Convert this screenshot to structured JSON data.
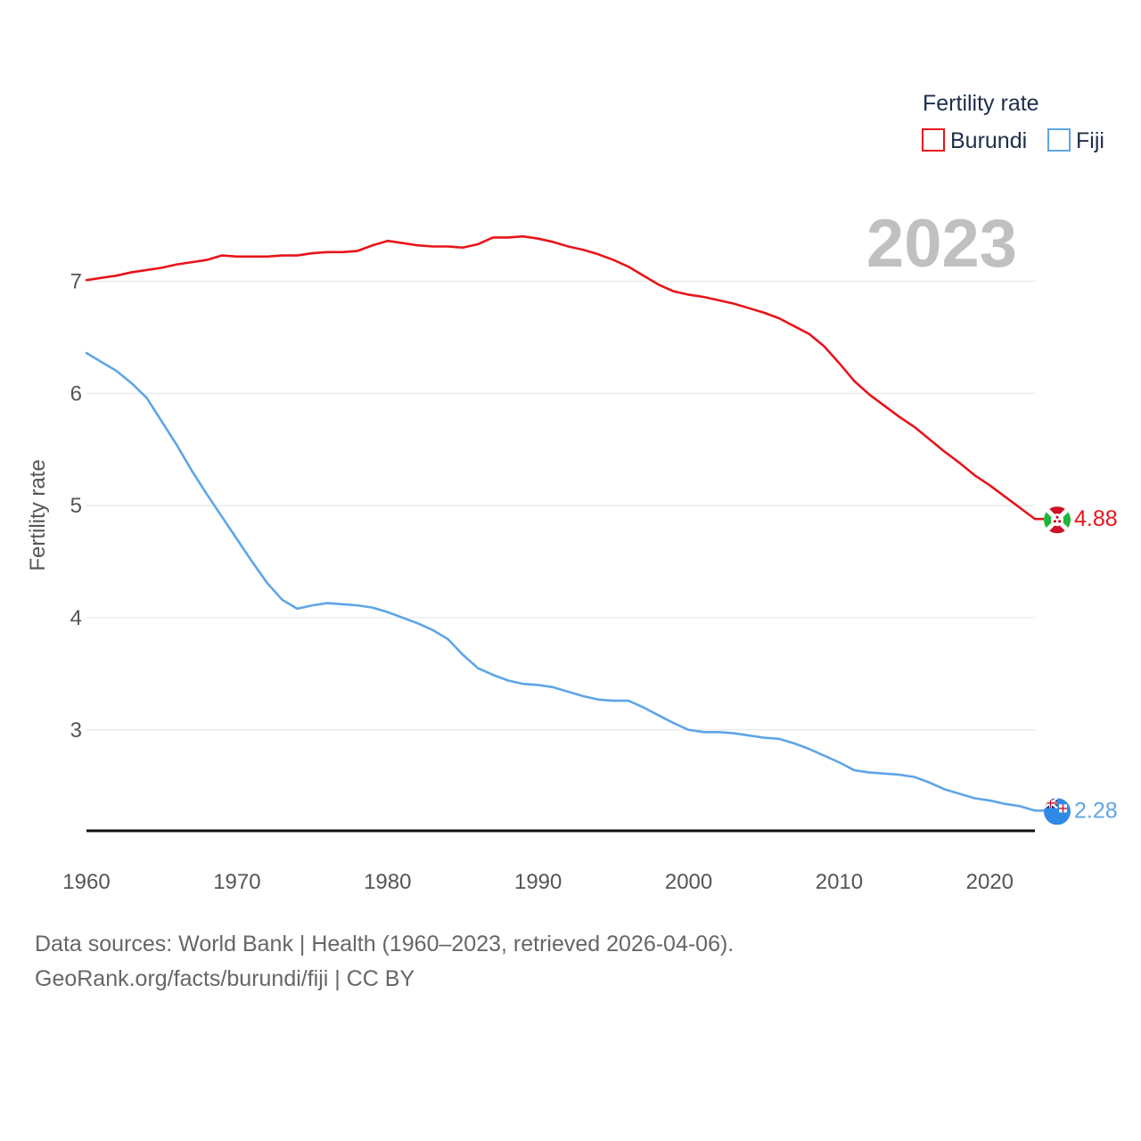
{
  "chart_data": {
    "type": "line",
    "ylabel": "Fertility rate",
    "xlabel": "",
    "legend": {
      "title": "Fertility rate",
      "position": "top-right"
    },
    "year_label": "2023",
    "x": [
      1960,
      1961,
      1962,
      1963,
      1964,
      1965,
      1966,
      1967,
      1968,
      1969,
      1970,
      1971,
      1972,
      1973,
      1974,
      1975,
      1976,
      1977,
      1978,
      1979,
      1980,
      1981,
      1982,
      1983,
      1984,
      1985,
      1986,
      1987,
      1988,
      1989,
      1990,
      1991,
      1992,
      1993,
      1994,
      1995,
      1996,
      1997,
      1998,
      1999,
      2000,
      2001,
      2002,
      2003,
      2004,
      2005,
      2006,
      2007,
      2008,
      2009,
      2010,
      2011,
      2012,
      2013,
      2014,
      2015,
      2016,
      2017,
      2018,
      2019,
      2020,
      2021,
      2022,
      2023
    ],
    "xlim": [
      1960,
      2023
    ],
    "ylim": [
      2.1,
      7.6
    ],
    "x_ticks": [
      1960,
      1970,
      1980,
      1990,
      2000,
      2010,
      2020
    ],
    "y_ticks": [
      3,
      4,
      5,
      6,
      7
    ],
    "grid": true,
    "series": [
      {
        "name": "Burundi",
        "color": "#e8141a",
        "flag_icon": "burundi-flag-icon",
        "end_label": "4.88",
        "values": [
          7.01,
          7.03,
          7.05,
          7.08,
          7.1,
          7.12,
          7.15,
          7.17,
          7.19,
          7.23,
          7.22,
          7.22,
          7.22,
          7.23,
          7.23,
          7.25,
          7.26,
          7.26,
          7.27,
          7.32,
          7.36,
          7.34,
          7.32,
          7.31,
          7.31,
          7.3,
          7.33,
          7.39,
          7.39,
          7.4,
          7.38,
          7.35,
          7.31,
          7.28,
          7.24,
          7.19,
          7.13,
          7.05,
          6.97,
          6.91,
          6.88,
          6.86,
          6.83,
          6.8,
          6.76,
          6.72,
          6.67,
          6.6,
          6.53,
          6.42,
          6.27,
          6.11,
          5.99,
          5.89,
          5.79,
          5.7,
          5.59,
          5.48,
          5.38,
          5.27,
          5.18,
          5.08,
          4.98,
          4.88
        ]
      },
      {
        "name": "Fiji",
        "color": "#5ea5e6",
        "flag_icon": "fiji-flag-icon",
        "end_label": "2.28",
        "values": [
          6.36,
          6.28,
          6.2,
          6.09,
          5.96,
          5.75,
          5.54,
          5.31,
          5.1,
          4.9,
          4.7,
          4.5,
          4.31,
          4.16,
          4.08,
          4.11,
          4.13,
          4.12,
          4.11,
          4.09,
          4.05,
          4.0,
          3.95,
          3.89,
          3.81,
          3.67,
          3.55,
          3.49,
          3.44,
          3.41,
          3.4,
          3.38,
          3.34,
          3.3,
          3.27,
          3.26,
          3.26,
          3.2,
          3.13,
          3.06,
          3.0,
          2.98,
          2.98,
          2.97,
          2.95,
          2.93,
          2.92,
          2.88,
          2.83,
          2.77,
          2.71,
          2.64,
          2.62,
          2.61,
          2.6,
          2.58,
          2.53,
          2.47,
          2.43,
          2.39,
          2.37,
          2.34,
          2.32,
          2.28
        ]
      }
    ]
  },
  "footer": {
    "sources": "Data sources: World Bank | Health (1960–2023, retrieved 2026-04-06).",
    "attribution": "GeoRank.org/facts/burundi/fiji | CC BY"
  }
}
